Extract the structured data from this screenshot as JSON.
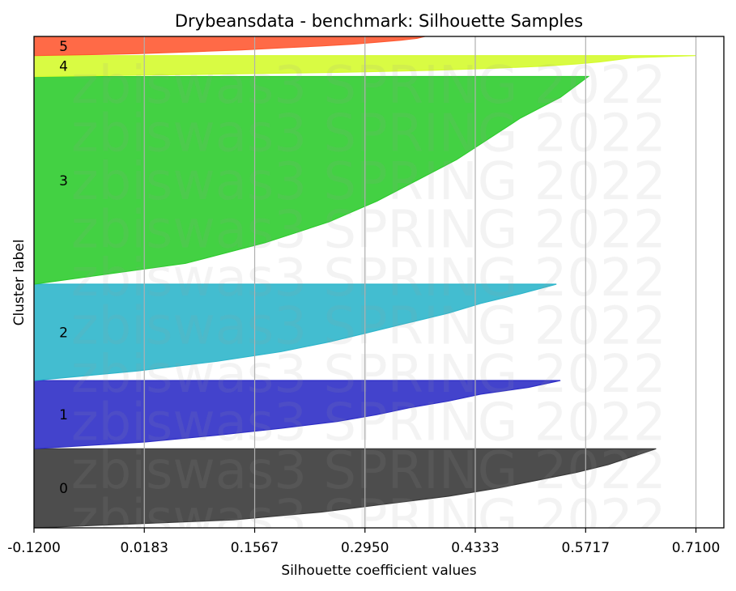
{
  "chart_data": {
    "type": "area",
    "title": "Drybeansdata - benchmark: Silhouette Samples",
    "xlabel": "Silhouette coefficient values",
    "ylabel": "Cluster label",
    "xlim": [
      -0.12,
      0.745
    ],
    "ylim": [
      0,
      13611
    ],
    "x_ticks": [
      "-0.1200",
      "0.0183",
      "0.1567",
      "0.2950",
      "0.4333",
      "0.5717",
      "0.7100"
    ],
    "x_tick_values": [
      -0.12,
      0.0183,
      0.1567,
      0.295,
      0.4333,
      0.5717,
      0.71
    ],
    "grid": "x",
    "watermark": "zbiswas3 SPRING 2022",
    "clusters": [
      {
        "label": "0",
        "start": 0,
        "end": 2190,
        "color": "#3a3a3a",
        "profile": [
          [
            0,
            0.0
          ],
          [
            0.1,
            0.25
          ],
          [
            0.2,
            0.36
          ],
          [
            0.3,
            0.44
          ],
          [
            0.4,
            0.52
          ],
          [
            0.5,
            0.58
          ],
          [
            0.6,
            0.63
          ],
          [
            0.7,
            0.68
          ],
          [
            0.8,
            0.72
          ],
          [
            0.9,
            0.75
          ],
          [
            1.0,
            0.78
          ]
        ]
      },
      {
        "label": "1",
        "start": 2190,
        "end": 4080,
        "color": "#2f2fc6",
        "profile": [
          [
            0,
            0.0
          ],
          [
            0.1,
            0.14
          ],
          [
            0.2,
            0.23
          ],
          [
            0.3,
            0.31
          ],
          [
            0.4,
            0.38
          ],
          [
            0.5,
            0.43
          ],
          [
            0.6,
            0.47
          ],
          [
            0.7,
            0.52
          ],
          [
            0.8,
            0.56
          ],
          [
            0.9,
            0.62
          ],
          [
            1.0,
            0.66
          ]
        ]
      },
      {
        "label": "2",
        "start": 4080,
        "end": 6750,
        "color": "#2fb6cb",
        "profile": [
          [
            0,
            0.0
          ],
          [
            0.1,
            0.13
          ],
          [
            0.2,
            0.23
          ],
          [
            0.3,
            0.31
          ],
          [
            0.4,
            0.37
          ],
          [
            0.5,
            0.42
          ],
          [
            0.6,
            0.47
          ],
          [
            0.7,
            0.52
          ],
          [
            0.8,
            0.56
          ],
          [
            0.9,
            0.61
          ],
          [
            1.0,
            0.655
          ]
        ]
      },
      {
        "label": "3",
        "start": 6750,
        "end": 12500,
        "color": "#2fcc2f",
        "profile": [
          [
            0,
            0.0
          ],
          [
            0.1,
            0.19
          ],
          [
            0.2,
            0.29
          ],
          [
            0.3,
            0.37
          ],
          [
            0.4,
            0.43
          ],
          [
            0.5,
            0.48
          ],
          [
            0.6,
            0.53
          ],
          [
            0.7,
            0.57
          ],
          [
            0.8,
            0.61
          ],
          [
            0.9,
            0.66
          ],
          [
            1.0,
            0.695
          ]
        ]
      },
      {
        "label": "4",
        "start": 12500,
        "end": 13080,
        "color": "#d5fb2f",
        "profile": [
          [
            0,
            0.0
          ],
          [
            0.1,
            0.2
          ],
          [
            0.2,
            0.38
          ],
          [
            0.3,
            0.5
          ],
          [
            0.4,
            0.58
          ],
          [
            0.5,
            0.64
          ],
          [
            0.6,
            0.68
          ],
          [
            0.7,
            0.71
          ],
          [
            0.8,
            0.73
          ],
          [
            0.9,
            0.75
          ],
          [
            1.0,
            0.83
          ]
        ]
      },
      {
        "label": "5",
        "start": 13080,
        "end": 13611,
        "color": "#ff5a33",
        "profile": [
          [
            0,
            0.0
          ],
          [
            0.1,
            0.13
          ],
          [
            0.2,
            0.2
          ],
          [
            0.3,
            0.26
          ],
          [
            0.4,
            0.31
          ],
          [
            0.5,
            0.36
          ],
          [
            0.6,
            0.4
          ],
          [
            0.7,
            0.43
          ],
          [
            0.8,
            0.46
          ],
          [
            0.9,
            0.48
          ],
          [
            1.0,
            0.49
          ]
        ]
      }
    ]
  }
}
